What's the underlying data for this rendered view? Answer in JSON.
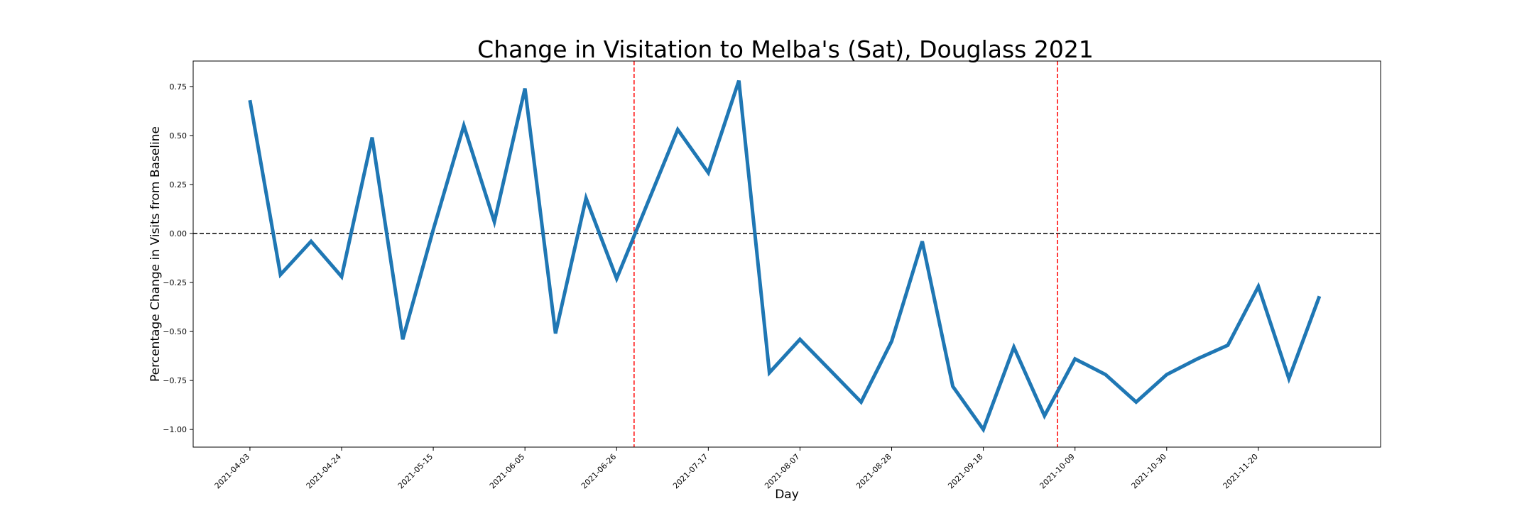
{
  "chart_data": {
    "type": "line",
    "title": "Change in Visitation to Melba's (Sat), Douglass 2021",
    "xlabel": "Day",
    "ylabel": "Percentage Change in Visits from Baseline",
    "x_tick_labels": [
      "2021-04-03",
      "2021-04-24",
      "2021-05-15",
      "2021-06-05",
      "2021-06-26",
      "2021-07-17",
      "2021-08-07",
      "2021-08-28",
      "2021-09-18",
      "2021-10-09",
      "2021-10-30",
      "2021-11-20"
    ],
    "y_ticks": [
      -1.0,
      -0.75,
      -0.5,
      -0.25,
      0.0,
      0.25,
      0.5,
      0.75
    ],
    "y_tick_labels": [
      "−1.00",
      "−0.75",
      "−0.50",
      "−0.25",
      "0.00",
      "0.25",
      "0.50",
      "0.75"
    ],
    "ylim": [
      -1.09,
      0.88
    ],
    "xlim": [
      "2021-03-21",
      "2021-12-18"
    ],
    "grid": false,
    "series": [
      {
        "color": "#1f77b4",
        "x": [
          "2021-04-03",
          "2021-04-10",
          "2021-04-17",
          "2021-04-24",
          "2021-05-01",
          "2021-05-08",
          "2021-05-15",
          "2021-05-22",
          "2021-05-29",
          "2021-06-05",
          "2021-06-12",
          "2021-06-19",
          "2021-06-26",
          "2021-07-03",
          "2021-07-10",
          "2021-07-17",
          "2021-07-24",
          "2021-07-31",
          "2021-08-07",
          "2021-08-14",
          "2021-08-21",
          "2021-08-28",
          "2021-09-04",
          "2021-09-11",
          "2021-09-18",
          "2021-09-25",
          "2021-10-02",
          "2021-10-09",
          "2021-10-16",
          "2021-10-23",
          "2021-10-30",
          "2021-11-06",
          "2021-11-13",
          "2021-11-20",
          "2021-11-27",
          "2021-12-04"
        ],
        "values": [
          0.68,
          -0.21,
          -0.04,
          -0.22,
          0.49,
          -0.54,
          0.02,
          0.55,
          0.06,
          0.74,
          -0.51,
          0.18,
          -0.23,
          0.15,
          0.53,
          0.31,
          0.78,
          -0.71,
          -0.54,
          -0.7,
          -0.86,
          -0.55,
          -0.04,
          -0.78,
          -1.0,
          -0.58,
          -0.93,
          -0.64,
          -0.72,
          -0.86,
          -0.72,
          -0.64,
          -0.57,
          -0.27,
          -0.74,
          -0.32
        ]
      }
    ],
    "reference_lines": [
      {
        "orientation": "horizontal",
        "value": 0.0,
        "color": "#000000",
        "style": "dashed"
      },
      {
        "orientation": "vertical",
        "value": "2021-06-30",
        "color": "#ff0000",
        "style": "dashed"
      },
      {
        "orientation": "vertical",
        "value": "2021-10-05",
        "color": "#ff0000",
        "style": "dashed"
      }
    ]
  }
}
